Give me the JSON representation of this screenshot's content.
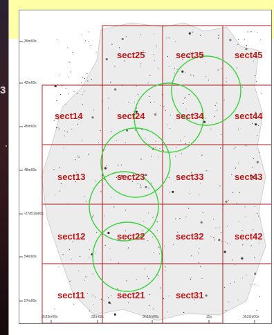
{
  "backdrop": {
    "visible_glyph": "3"
  },
  "figure": {
    "sections": [
      {
        "id": "sect25",
        "label": "sect25"
      },
      {
        "id": "sect35",
        "label": "sect35"
      },
      {
        "id": "sect45",
        "label": "sect45"
      },
      {
        "id": "sect14",
        "label": "sect14"
      },
      {
        "id": "sect24",
        "label": "sect24"
      },
      {
        "id": "sect34",
        "label": "sect34"
      },
      {
        "id": "sect44",
        "label": "sect44"
      },
      {
        "id": "sect13",
        "label": "sect13"
      },
      {
        "id": "sect23",
        "label": "sect23"
      },
      {
        "id": "sect33",
        "label": "sect33"
      },
      {
        "id": "sect43",
        "label": "sect43"
      },
      {
        "id": "sect12",
        "label": "sect12"
      },
      {
        "id": "sect22",
        "label": "sect22"
      },
      {
        "id": "sect32",
        "label": "sect32"
      },
      {
        "id": "sect42",
        "label": "sect42"
      },
      {
        "id": "sect11",
        "label": "sect11"
      },
      {
        "id": "sect21",
        "label": "sect21"
      },
      {
        "id": "sect31",
        "label": "sect31"
      }
    ],
    "dec_ticks": [
      "39m00s",
      "42m00s",
      "45m00s",
      "48m00s",
      "-27d51m00s",
      "54m00s",
      "57m00s"
    ],
    "ra_ticks": [
      "3h33m00s",
      "32m00s",
      "3h32m00s",
      "15s",
      "3h32m00s"
    ],
    "colors": {
      "grid": "#b01c1c",
      "labels": "#c01818",
      "circles": "#39d13a",
      "yellow_band": "#ffffa8"
    }
  }
}
